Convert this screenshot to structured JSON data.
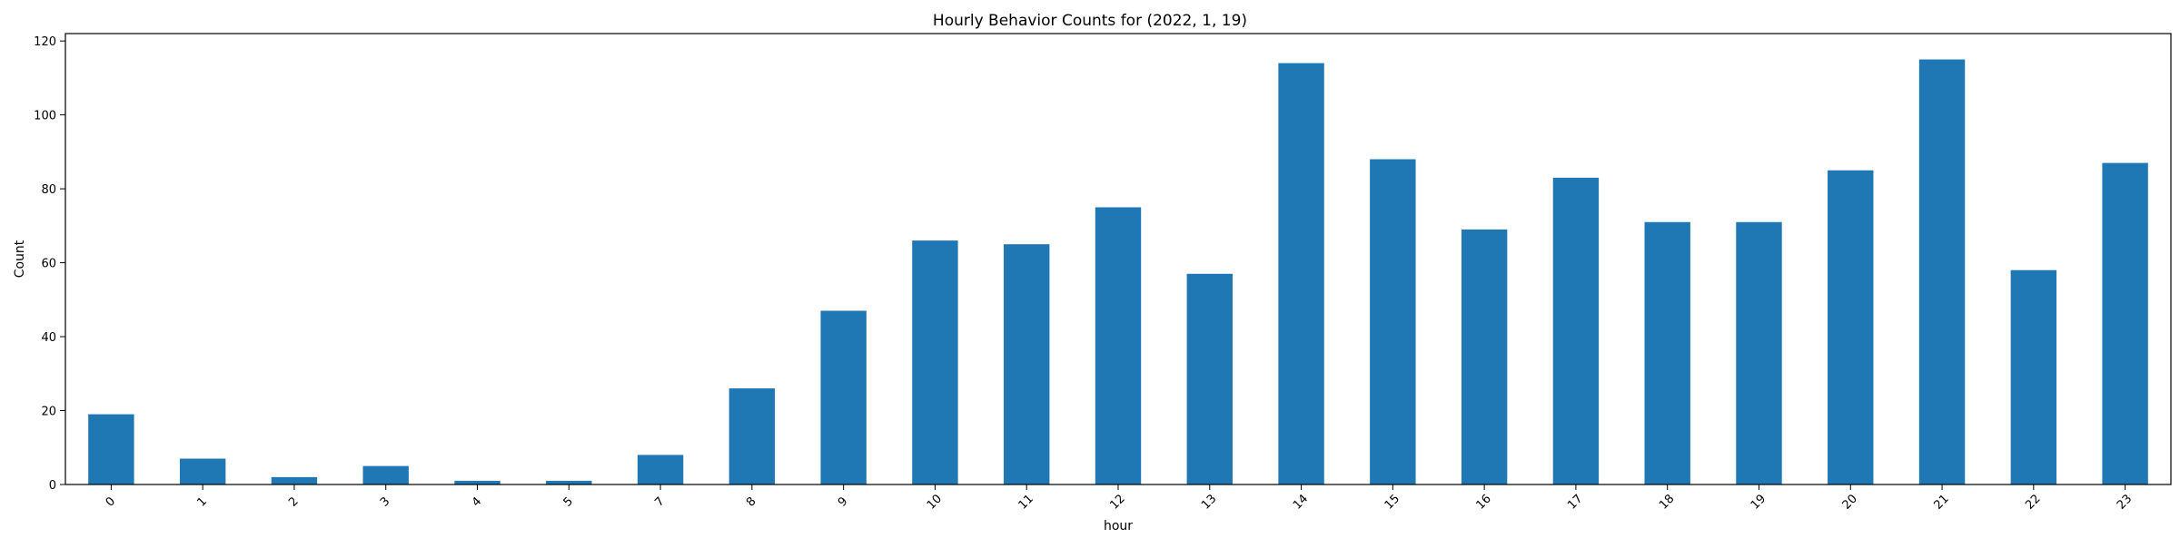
{
  "chart_data": {
    "type": "bar",
    "title": "Hourly Behavior Counts for (2022, 1, 19)",
    "xlabel": "hour",
    "ylabel": "Count",
    "categories": [
      "0",
      "1",
      "2",
      "3",
      "4",
      "5",
      "7",
      "8",
      "9",
      "10",
      "11",
      "12",
      "13",
      "14",
      "15",
      "16",
      "17",
      "18",
      "19",
      "20",
      "21",
      "22",
      "23"
    ],
    "values": [
      19,
      7,
      2,
      5,
      1,
      1,
      8,
      26,
      47,
      66,
      65,
      75,
      57,
      114,
      88,
      69,
      83,
      71,
      71,
      85,
      115,
      58,
      87
    ],
    "ylim": [
      0,
      122
    ],
    "yticks": [
      0,
      20,
      40,
      60,
      80,
      100,
      120
    ],
    "grid": false,
    "legend": "none",
    "bar_color": "#1f77b4",
    "xtick_rotation": 45
  }
}
